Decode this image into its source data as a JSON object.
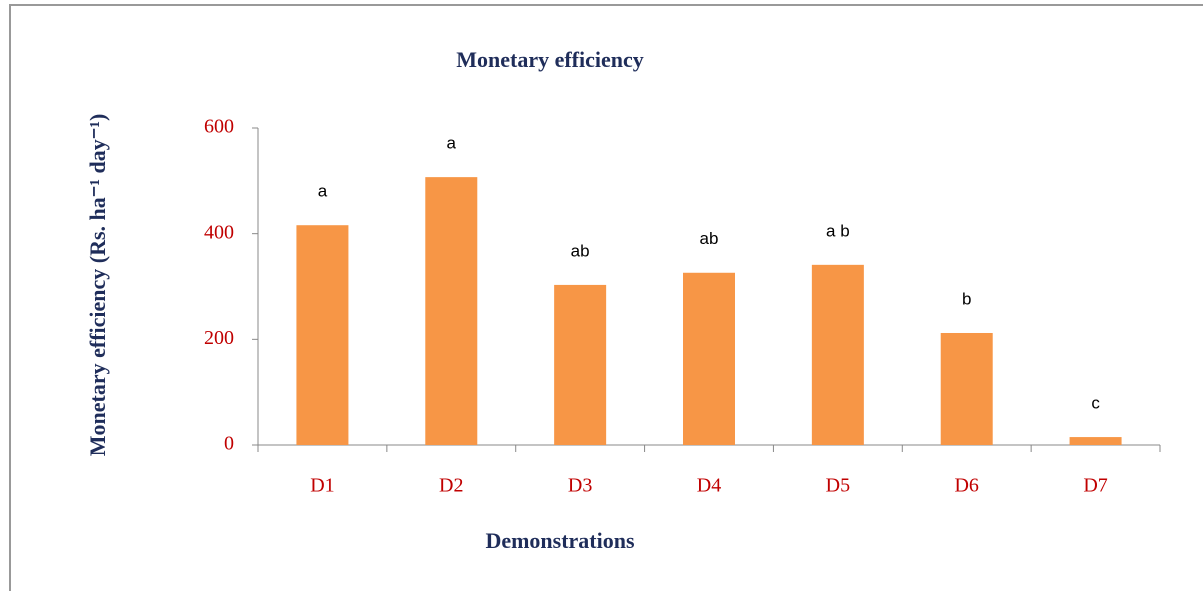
{
  "chart_data": {
    "type": "bar",
    "title": "Monetary efficiency",
    "y_label": "Monetary efficiency (Rs. ha⁻¹ day⁻¹)",
    "x_label": "Demonstrations",
    "categories": [
      "D1",
      "D2",
      "D3",
      "D4",
      "D5",
      "D6",
      "D7"
    ],
    "values": [
      416,
      507,
      303,
      326,
      341,
      212,
      15
    ],
    "annotations": [
      "a",
      "a",
      "ab",
      "ab",
      "a b",
      "b",
      "c"
    ],
    "color": "#f79646",
    "ylim": [
      0,
      600
    ],
    "yticks": [
      0,
      200,
      400,
      600
    ],
    "grid": false
  }
}
